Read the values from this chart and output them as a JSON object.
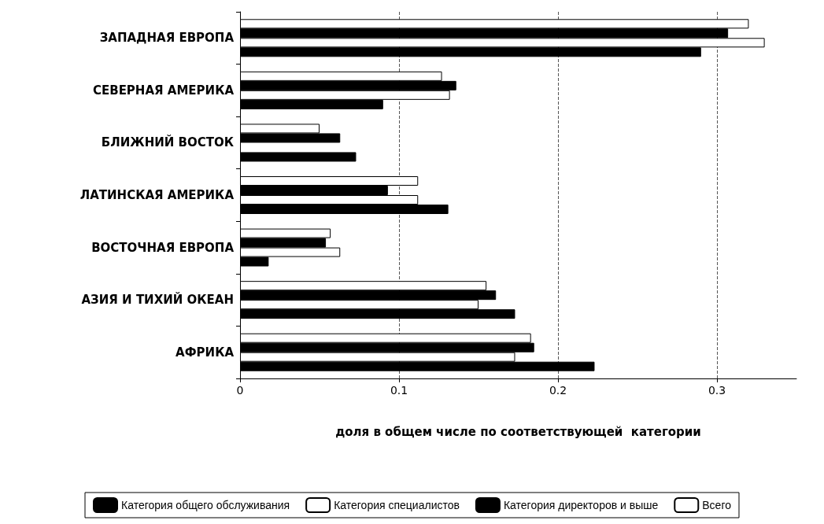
{
  "chart_data": {
    "type": "bar",
    "orientation": "horizontal",
    "xlabel": "доля в общем числе по соответствующей  категории",
    "categories": [
      "ЗАПАДНАЯ ЕВРОПА",
      "СЕВЕРНАЯ АМЕРИКА",
      "БЛИЖНИЙ ВОСТОК",
      "ЛАТИНСКАЯ АМЕРИКА",
      "ВОСТОЧНАЯ ЕВРОПА",
      "АЗИЯ И ТИХИЙ ОКЕАН",
      "АФРИКА"
    ],
    "series": [
      {
        "name": "Всего",
        "color": "#ffffff",
        "values": [
          0.32,
          0.127,
          0.05,
          0.112,
          0.057,
          0.155,
          0.183
        ]
      },
      {
        "name": "Категория директоров и выше",
        "color": "#000000",
        "values": [
          0.307,
          0.136,
          0.063,
          0.093,
          0.054,
          0.161,
          0.185
        ]
      },
      {
        "name": "Категория специалистов",
        "color": "#ffffff",
        "values": [
          0.33,
          0.132,
          null,
          0.112,
          0.063,
          0.15,
          0.173
        ]
      },
      {
        "name": "Категория общего обслуживания",
        "color": "#000000",
        "values": [
          0.29,
          0.09,
          0.073,
          0.131,
          0.018,
          0.173,
          0.223
        ]
      }
    ],
    "xlim": [
      0,
      0.35
    ],
    "xticks": [
      0,
      0.1,
      0.2,
      0.3
    ],
    "grid": "x",
    "legend": "bottom"
  }
}
